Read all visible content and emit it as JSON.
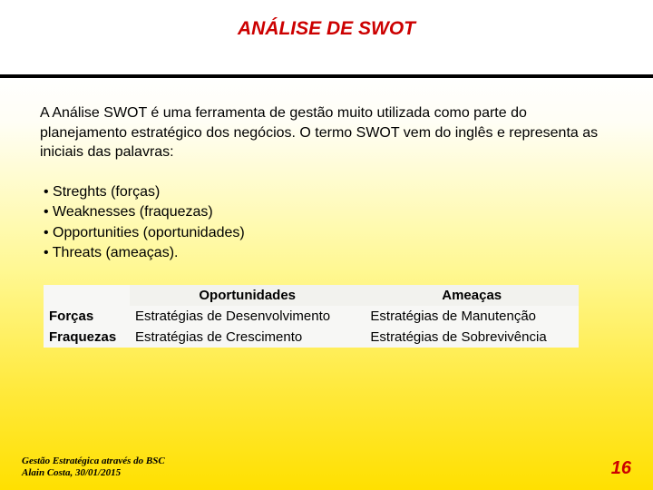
{
  "title": "ANÁLISE DE SWOT",
  "title_color": "#cc0000",
  "title_fontsize": 21,
  "paragraph": "A Análise SWOT é uma ferramenta de gestão muito utilizada como parte do planejamento estratégico dos negócios. O termo SWOT vem do inglês e representa as iniciais das palavras:",
  "bullets": [
    "Streghts (forças)",
    "Weaknesses (fraquezas)",
    "Opportunities (oportunidades)",
    "Threats (ameaças)."
  ],
  "table": {
    "type": "table",
    "background_color": "#f7f7f5",
    "header_background": "#f2f2ee",
    "columns": [
      "",
      "Oportunidades",
      "Ameaças"
    ],
    "rows": [
      [
        "Forças",
        "Estratégias de Desenvolvimento",
        "Estratégias de Manutenção"
      ],
      [
        "Fraquezas",
        "Estratégias de Crescimento",
        "Estratégias de Sobrevivência"
      ]
    ]
  },
  "footer": {
    "line1": "Gestão Estratégica através do BSC",
    "line2": "Alain Costa, 30/01/2015",
    "page_number": "16",
    "page_color": "#cc0000"
  },
  "background_gradient": {
    "top": "#ffffff",
    "mid": "#fff893",
    "bottom": "#ffe000"
  }
}
